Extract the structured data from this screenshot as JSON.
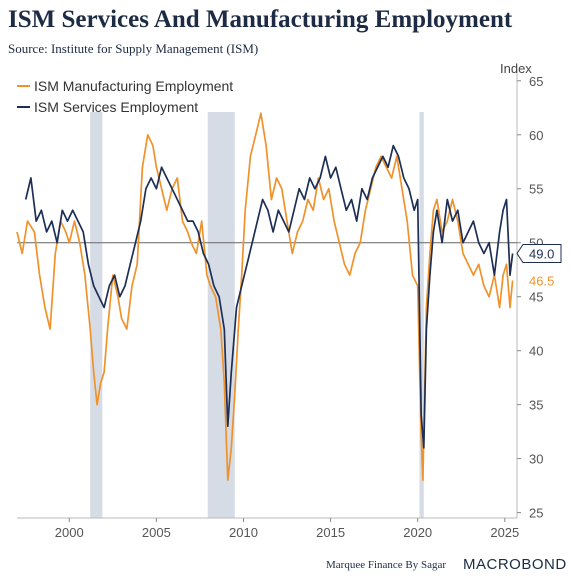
{
  "header": {
    "title": "ISM Services And Manufacturing Employment",
    "subtitle": "Source: Institute for Supply Management (ISM)"
  },
  "footer": {
    "credit": "Marquee Finance By Sagar",
    "brand": "MACROBOND"
  },
  "colors": {
    "manufacturing": "#f0922b",
    "services": "#1d2f55",
    "recession": "#d6dce6",
    "reference_line": "#666666"
  },
  "chart_data": {
    "type": "line",
    "title": "ISM Services And Manufacturing Employment",
    "ylabel": "Index",
    "ylim": [
      24.5,
      66
    ],
    "xlim": [
      1997.0,
      2025.7
    ],
    "yticks": [
      25,
      30,
      35,
      40,
      45,
      50,
      55,
      60,
      65
    ],
    "xticks": [
      2000,
      2005,
      2010,
      2015,
      2020,
      2025
    ],
    "legend_position": "top-left",
    "reference_line": 50,
    "recessions": [
      [
        2001.2,
        2001.9
      ],
      [
        2007.95,
        2009.5
      ],
      [
        2020.1,
        2020.35
      ]
    ],
    "series": [
      {
        "name": "ISM Manufacturing Employment",
        "color": "#f0922b",
        "last_label": "46.5",
        "points": [
          [
            1997.0,
            51
          ],
          [
            1997.3,
            49
          ],
          [
            1997.6,
            52
          ],
          [
            1998.0,
            51
          ],
          [
            1998.3,
            47
          ],
          [
            1998.6,
            44
          ],
          [
            1998.9,
            42
          ],
          [
            1999.2,
            49
          ],
          [
            1999.5,
            52
          ],
          [
            1999.8,
            51
          ],
          [
            2000.0,
            50
          ],
          [
            2000.3,
            52
          ],
          [
            2000.6,
            50
          ],
          [
            2000.9,
            47
          ],
          [
            2001.2,
            42
          ],
          [
            2001.4,
            38
          ],
          [
            2001.6,
            35
          ],
          [
            2001.8,
            37
          ],
          [
            2002.0,
            38
          ],
          [
            2002.2,
            42
          ],
          [
            2002.5,
            47
          ],
          [
            2002.8,
            45
          ],
          [
            2003.0,
            43
          ],
          [
            2003.3,
            42
          ],
          [
            2003.6,
            46
          ],
          [
            2003.9,
            48
          ],
          [
            2004.2,
            57
          ],
          [
            2004.5,
            60
          ],
          [
            2004.8,
            59
          ],
          [
            2005.0,
            57
          ],
          [
            2005.3,
            55
          ],
          [
            2005.6,
            53
          ],
          [
            2005.9,
            55
          ],
          [
            2006.2,
            56
          ],
          [
            2006.5,
            52
          ],
          [
            2006.8,
            51
          ],
          [
            2007.0,
            50
          ],
          [
            2007.3,
            49
          ],
          [
            2007.6,
            52
          ],
          [
            2007.9,
            47
          ],
          [
            2008.1,
            46
          ],
          [
            2008.4,
            45
          ],
          [
            2008.7,
            42
          ],
          [
            2008.9,
            37
          ],
          [
            2009.1,
            28
          ],
          [
            2009.3,
            31
          ],
          [
            2009.5,
            36
          ],
          [
            2009.7,
            42
          ],
          [
            2009.9,
            47
          ],
          [
            2010.1,
            53
          ],
          [
            2010.4,
            58
          ],
          [
            2010.7,
            60
          ],
          [
            2011.0,
            62
          ],
          [
            2011.3,
            59
          ],
          [
            2011.6,
            54
          ],
          [
            2011.9,
            56
          ],
          [
            2012.2,
            55
          ],
          [
            2012.5,
            52
          ],
          [
            2012.8,
            49
          ],
          [
            2013.1,
            51
          ],
          [
            2013.4,
            52
          ],
          [
            2013.7,
            54
          ],
          [
            2014.0,
            53
          ],
          [
            2014.3,
            56
          ],
          [
            2014.6,
            54
          ],
          [
            2014.9,
            55
          ],
          [
            2015.2,
            52
          ],
          [
            2015.5,
            50
          ],
          [
            2015.8,
            48
          ],
          [
            2016.1,
            47
          ],
          [
            2016.4,
            49
          ],
          [
            2016.7,
            50
          ],
          [
            2017.0,
            53
          ],
          [
            2017.3,
            55
          ],
          [
            2017.6,
            57
          ],
          [
            2017.9,
            58
          ],
          [
            2018.2,
            57
          ],
          [
            2018.5,
            56
          ],
          [
            2018.8,
            58
          ],
          [
            2019.1,
            55
          ],
          [
            2019.4,
            52
          ],
          [
            2019.7,
            47
          ],
          [
            2020.0,
            46
          ],
          [
            2020.2,
            32
          ],
          [
            2020.3,
            28
          ],
          [
            2020.5,
            44
          ],
          [
            2020.7,
            49
          ],
          [
            2020.9,
            53
          ],
          [
            2021.1,
            54
          ],
          [
            2021.4,
            51
          ],
          [
            2021.7,
            52
          ],
          [
            2022.0,
            54
          ],
          [
            2022.3,
            52
          ],
          [
            2022.6,
            49
          ],
          [
            2022.9,
            48
          ],
          [
            2023.2,
            47
          ],
          [
            2023.5,
            48
          ],
          [
            2023.8,
            46
          ],
          [
            2024.1,
            45
          ],
          [
            2024.4,
            47
          ],
          [
            2024.7,
            44
          ],
          [
            2024.9,
            47
          ],
          [
            2025.1,
            48
          ],
          [
            2025.3,
            44
          ],
          [
            2025.45,
            46.5
          ]
        ]
      },
      {
        "name": "ISM Services Employment",
        "color": "#1d2f55",
        "last_label": "49.0",
        "points": [
          [
            1997.5,
            54
          ],
          [
            1997.8,
            56
          ],
          [
            1998.1,
            52
          ],
          [
            1998.4,
            53
          ],
          [
            1998.7,
            51
          ],
          [
            1999.0,
            52
          ],
          [
            1999.3,
            50
          ],
          [
            1999.6,
            53
          ],
          [
            1999.9,
            52
          ],
          [
            2000.2,
            53
          ],
          [
            2000.5,
            52
          ],
          [
            2000.8,
            51
          ],
          [
            2001.1,
            48
          ],
          [
            2001.4,
            46
          ],
          [
            2001.7,
            45
          ],
          [
            2002.0,
            44
          ],
          [
            2002.3,
            46
          ],
          [
            2002.6,
            47
          ],
          [
            2002.9,
            45
          ],
          [
            2003.2,
            46
          ],
          [
            2003.5,
            48
          ],
          [
            2003.8,
            50
          ],
          [
            2004.1,
            52
          ],
          [
            2004.4,
            55
          ],
          [
            2004.7,
            56
          ],
          [
            2005.0,
            55
          ],
          [
            2005.3,
            57
          ],
          [
            2005.6,
            56
          ],
          [
            2005.9,
            55
          ],
          [
            2006.2,
            54
          ],
          [
            2006.5,
            53
          ],
          [
            2006.8,
            52
          ],
          [
            2007.1,
            52
          ],
          [
            2007.4,
            51
          ],
          [
            2007.7,
            49
          ],
          [
            2008.0,
            48
          ],
          [
            2008.3,
            46
          ],
          [
            2008.6,
            45
          ],
          [
            2008.9,
            42
          ],
          [
            2009.1,
            33
          ],
          [
            2009.3,
            38
          ],
          [
            2009.6,
            44
          ],
          [
            2009.9,
            46
          ],
          [
            2010.2,
            48
          ],
          [
            2010.5,
            50
          ],
          [
            2010.8,
            52
          ],
          [
            2011.1,
            54
          ],
          [
            2011.4,
            53
          ],
          [
            2011.7,
            51
          ],
          [
            2012.0,
            53
          ],
          [
            2012.3,
            52
          ],
          [
            2012.6,
            51
          ],
          [
            2012.9,
            53
          ],
          [
            2013.2,
            55
          ],
          [
            2013.5,
            54
          ],
          [
            2013.8,
            56
          ],
          [
            2014.1,
            55
          ],
          [
            2014.4,
            56
          ],
          [
            2014.7,
            58
          ],
          [
            2015.0,
            56
          ],
          [
            2015.3,
            57
          ],
          [
            2015.6,
            55
          ],
          [
            2015.9,
            53
          ],
          [
            2016.2,
            54
          ],
          [
            2016.5,
            52
          ],
          [
            2016.8,
            55
          ],
          [
            2017.1,
            54
          ],
          [
            2017.4,
            56
          ],
          [
            2017.7,
            57
          ],
          [
            2018.0,
            58
          ],
          [
            2018.3,
            57
          ],
          [
            2018.6,
            59
          ],
          [
            2018.9,
            58
          ],
          [
            2019.2,
            56
          ],
          [
            2019.5,
            55
          ],
          [
            2019.8,
            53
          ],
          [
            2020.0,
            54
          ],
          [
            2020.2,
            34
          ],
          [
            2020.35,
            31
          ],
          [
            2020.5,
            42
          ],
          [
            2020.7,
            47
          ],
          [
            2020.9,
            51
          ],
          [
            2021.1,
            53
          ],
          [
            2021.4,
            50
          ],
          [
            2021.7,
            54
          ],
          [
            2022.0,
            52
          ],
          [
            2022.3,
            53
          ],
          [
            2022.6,
            50
          ],
          [
            2022.9,
            51
          ],
          [
            2023.2,
            52
          ],
          [
            2023.5,
            50
          ],
          [
            2023.8,
            49
          ],
          [
            2024.1,
            50
          ],
          [
            2024.4,
            47
          ],
          [
            2024.7,
            51
          ],
          [
            2024.9,
            53
          ],
          [
            2025.1,
            54
          ],
          [
            2025.3,
            47
          ],
          [
            2025.45,
            49.0
          ]
        ]
      }
    ]
  }
}
